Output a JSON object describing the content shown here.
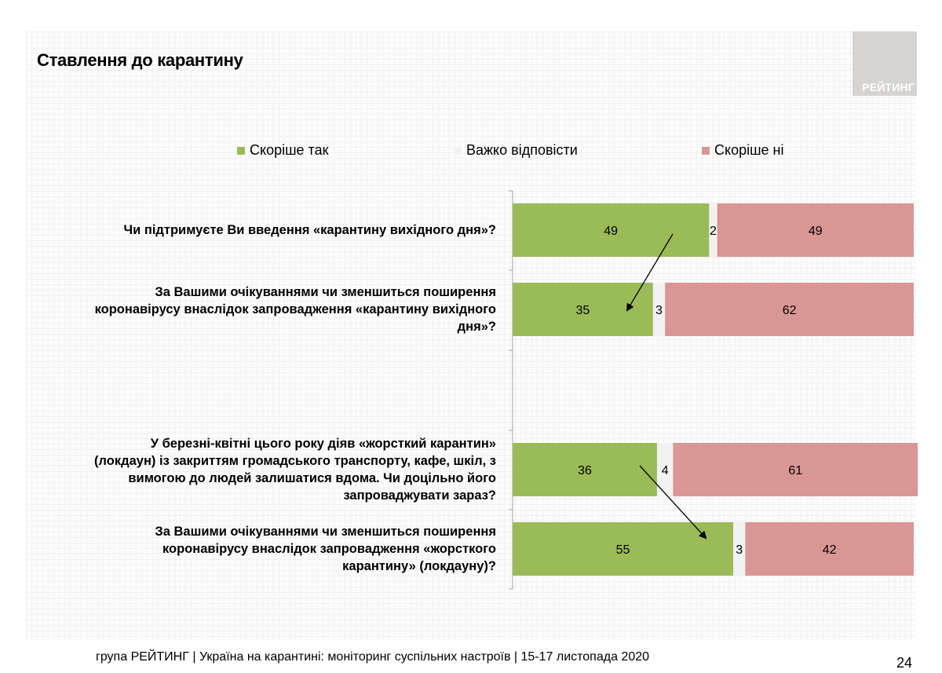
{
  "header": {
    "title": "Ставлення до карантину",
    "logo_text": "РЕЙТИНГ"
  },
  "footer": {
    "text": "група РЕЙТИНГ | Україна на карантині: моніторинг суспільних настроїв | 15-17 листопада 2020",
    "page_number": "24"
  },
  "colors": {
    "yes": "#9bbb59",
    "hard": "#f2f2f2",
    "no": "#d99694",
    "arrow": "#000000"
  },
  "chart_data": {
    "type": "bar",
    "orientation": "horizontal",
    "stacked": true,
    "xlim": [
      0,
      100
    ],
    "legend_position": "top",
    "series": [
      {
        "name": "Скоріше так",
        "color": "#9bbb59",
        "values": [
          49,
          35,
          36,
          55
        ]
      },
      {
        "name": "Важко відповісти",
        "color": "#f2f2f2",
        "values": [
          2,
          3,
          4,
          3
        ]
      },
      {
        "name": "Скоріше ні",
        "color": "#d99694",
        "values": [
          49,
          62,
          61,
          42
        ]
      }
    ],
    "categories": [
      "Чи підтримуєте Ви введення «карантину вихідного дня»?",
      "За Вашими очікуваннями чи зменшиться поширення коронавірусу внаслідок запровадження «карантину вихідного дня»?",
      "У березні-квітні цього року діяв «жорсткий карантин» (локдаун) із закриттям громадського транспорту, кафе, шкіл, з вимогою до людей залишатися вдома. Чи доцільно його запроваджувати зараз?",
      "За Вашими очікуваннями чи зменшиться поширення коронавірусу внаслідок запровадження «жорсткого карантину» (локдауну)?"
    ],
    "category_lines": [
      [
        "Чи підтримуєте Ви введення «карантину вихідного дня»?"
      ],
      [
        "За Вашими очікуваннями чи зменшиться поширення",
        "коронавірусу внаслідок запровадження «карантину вихідного",
        "дня»?"
      ],
      [
        "У березні-квітні цього року діяв «жорсткий карантин»",
        "(локдаун) із закриттям громадського транспорту, кафе, шкіл, з",
        "вимогою до людей залишатися вдома. Чи доцільно його",
        "запроваджувати зараз?"
      ],
      [
        "За Вашими очікуваннями чи зменшиться поширення",
        "коронавірусу внаслідок запровадження «жорсткого",
        "карантину» (локдауну)?"
      ]
    ]
  }
}
